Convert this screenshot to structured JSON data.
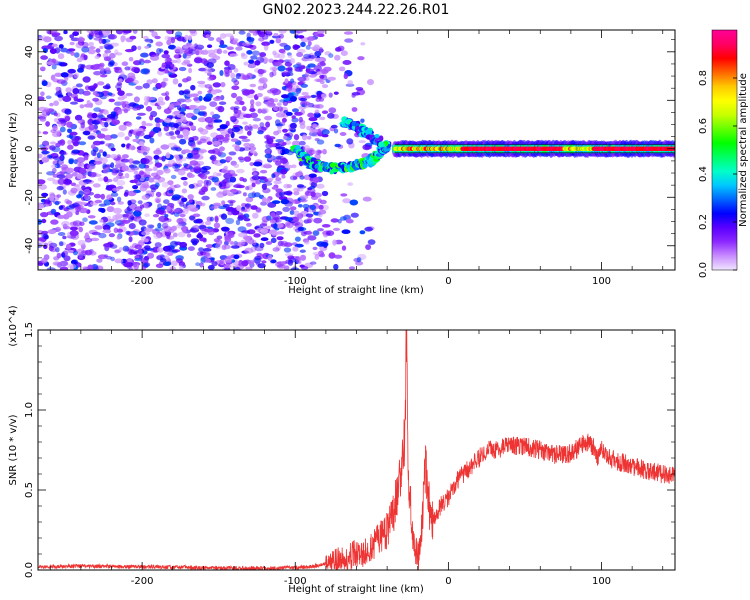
{
  "figure": {
    "title": "GN02.2023.244.22.26.R01"
  },
  "chart_data": [
    {
      "type": "heatmap",
      "xlabel": "Height of straight line (km)",
      "ylabel": "Frequency (Hz)",
      "xlim": [
        -268,
        148
      ],
      "ylim": [
        -50,
        49
      ],
      "xticks": [
        -200,
        -100,
        0,
        100
      ],
      "yticks": [
        -40,
        -20,
        0,
        20,
        40
      ],
      "colorbar": {
        "label": "Normalized spectral amplitude",
        "range": [
          0,
          1
        ],
        "ticks": [
          0.0,
          0.2,
          0.4,
          0.6,
          0.8
        ],
        "colormap": [
          "#f0e6ff",
          "#c88cff",
          "#8c28ff",
          "#5a00ff",
          "#0000ff",
          "#0064ff",
          "#00c8ff",
          "#00ffc8",
          "#00ff64",
          "#00ff00",
          "#64ff00",
          "#c8ff00",
          "#ffff00",
          "#ffc800",
          "#ff6400",
          "#ff0000",
          "#ff0064",
          "#ff0096"
        ]
      },
      "features": [
        {
          "name": "noise",
          "x_range": [
            -268,
            -80
          ],
          "y_range": [
            -50,
            49
          ],
          "amplitude": 0.2
        },
        {
          "name": "tone",
          "x_range": [
            -35,
            148
          ],
          "y": 0,
          "amplitude": 0.95
        },
        {
          "name": "arc",
          "points": [
            [
              -100,
              0
            ],
            [
              -90,
              -6
            ],
            [
              -75,
              -8
            ],
            [
              -60,
              -7
            ],
            [
              -50,
              -5
            ],
            [
              -45,
              -2
            ],
            [
              -40,
              2
            ]
          ],
          "amplitude": 0.45
        },
        {
          "name": "rising-branch",
          "points": [
            [
              -68,
              11
            ],
            [
              -60,
              9
            ],
            [
              -52,
              6
            ],
            [
              -45,
              3
            ]
          ],
          "amplitude": 0.35
        },
        {
          "name": "blob",
          "x": -104,
          "y": 21,
          "amplitude": 0.3
        }
      ]
    },
    {
      "type": "line",
      "xlabel": "Height of straight line (km)",
      "ylabel": "SNR (10 * v/v)",
      "scale_label": "(x10^4)",
      "xlim": [
        -268,
        148
      ],
      "ylim": [
        0,
        1.5
      ],
      "xticks": [
        -200,
        -100,
        0,
        100
      ],
      "yticks": [
        0.0,
        0.5,
        1.0,
        1.5
      ],
      "color": "#ee3333",
      "series": [
        {
          "x": [
            -268,
            -240,
            -200,
            -160,
            -120,
            -100,
            -90,
            -80,
            -70,
            -60,
            -55,
            -50,
            -45,
            -40,
            -36,
            -33,
            -30,
            -28,
            -27.5,
            -27,
            -26,
            -24,
            -22,
            -20,
            -18,
            -16,
            -15,
            -14,
            -12,
            -10,
            -5,
            0,
            5,
            10,
            15,
            20,
            25,
            30,
            40,
            50,
            60,
            70,
            80,
            90,
            95,
            98,
            100,
            105,
            110,
            120,
            130,
            140,
            148
          ],
          "y": [
            0.02,
            0.025,
            0.02,
            0.015,
            0.01,
            0.015,
            0.02,
            0.04,
            0.06,
            0.1,
            0.12,
            0.15,
            0.2,
            0.25,
            0.35,
            0.5,
            0.7,
            0.9,
            1.5,
            1.2,
            0.6,
            0.3,
            0.15,
            0.08,
            0.15,
            0.5,
            0.65,
            0.55,
            0.35,
            0.3,
            0.4,
            0.45,
            0.55,
            0.6,
            0.65,
            0.7,
            0.76,
            0.75,
            0.78,
            0.77,
            0.75,
            0.72,
            0.73,
            0.8,
            0.77,
            0.7,
            0.75,
            0.7,
            0.68,
            0.65,
            0.62,
            0.6,
            0.6
          ]
        }
      ]
    }
  ]
}
